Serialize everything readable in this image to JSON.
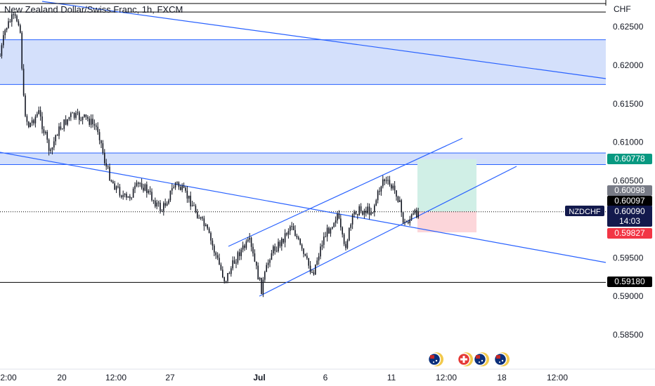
{
  "header": {
    "title": "New Zealand Dollar/Swiss Franc, 1h, FXCM",
    "currency": "CHF"
  },
  "chart_data": {
    "type": "candlestick",
    "symbol": "NZDCHF",
    "ylim": [
      0.5825,
      0.6275
    ],
    "y_ticks": [
      "0.62500",
      "0.62000",
      "0.61500",
      "0.61000",
      "0.60500",
      "0.59500",
      "0.59000",
      "0.58500"
    ],
    "x_ticks": [
      "2:00",
      "20",
      "12:00",
      "27",
      "Jul",
      "6",
      "11",
      "12:00",
      "18",
      "12:00"
    ],
    "price_labels": [
      {
        "value": 0.60778,
        "text": "0.60778",
        "color": "#089981",
        "text_color": "#ffffff"
      },
      {
        "value": 0.60098,
        "text": "0.60098",
        "color": "#787b86",
        "text_color": "#ffffff"
      },
      {
        "value": 0.60097,
        "text": "0.60097",
        "color": "#000000",
        "text_color": "#ffffff"
      },
      {
        "value": 0.6009,
        "text": "0.60090",
        "color": "#131a4d",
        "text_color": "#ffffff"
      },
      {
        "value": 0.59827,
        "text": "0.59827",
        "color": "#f23645",
        "text_color": "#ffffff"
      },
      {
        "value": 0.5918,
        "text": "0.59180",
        "color": "#000000",
        "text_color": "#ffffff"
      }
    ],
    "countdown": "14:03",
    "symbol_tag": "NZDCHF",
    "zones": [
      {
        "from": 0.6175,
        "to": 0.6233,
        "color": "#d4e0fb"
      },
      {
        "from": 0.6071,
        "to": 0.6086,
        "color": "#d4e0fb"
      }
    ],
    "horizontal_levels": [
      {
        "value": 0.6269
      },
      {
        "value": 0.5918
      }
    ],
    "position": {
      "entry": 0.601,
      "target": 0.6078,
      "stop": 0.5983
    },
    "colors": {
      "line": "#2962ff",
      "candle": "#131722",
      "zone": "#d4e0fb",
      "profit": "#d0efe6",
      "loss": "#fcd6da",
      "accent": "#089981"
    },
    "event_icons": [
      "australia-flag-icon",
      "switzerland-flag-icon",
      "new-zealand-flag-icon",
      "new-zealand-flag-icon"
    ]
  }
}
